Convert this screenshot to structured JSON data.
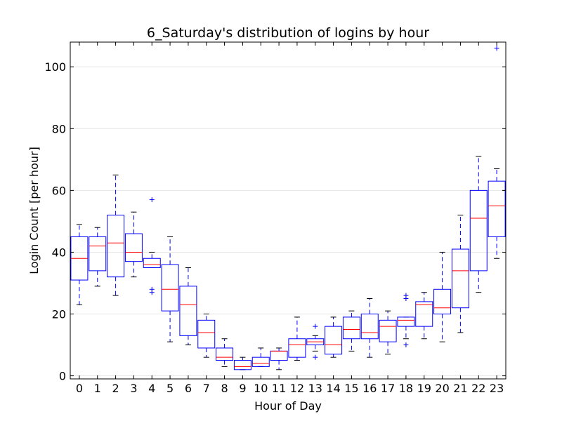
{
  "chart_data": {
    "type": "boxplot",
    "title": "6_Saturday's distribution of logins by hour",
    "xlabel": "Hour of Day",
    "ylabel": "Login Count [per hour]",
    "ylim": [
      -1,
      108
    ],
    "yticks": [
      0,
      20,
      40,
      60,
      80,
      100
    ],
    "grid": "horizontal",
    "colors": {
      "box": "#0000ff",
      "median": "#ff0000",
      "grid": "#e6e6e6"
    },
    "categories": [
      "0",
      "1",
      "2",
      "3",
      "4",
      "5",
      "6",
      "7",
      "8",
      "9",
      "10",
      "11",
      "12",
      "13",
      "14",
      "15",
      "16",
      "17",
      "18",
      "19",
      "20",
      "21",
      "22",
      "23"
    ],
    "boxes": [
      {
        "whislo": 23,
        "q1": 31,
        "med": 38,
        "q3": 45,
        "whishi": 49,
        "fliers": []
      },
      {
        "whislo": 29,
        "q1": 34,
        "med": 42,
        "q3": 45,
        "whishi": 48,
        "fliers": []
      },
      {
        "whislo": 26,
        "q1": 32,
        "med": 43,
        "q3": 52,
        "whishi": 65,
        "fliers": []
      },
      {
        "whislo": 32,
        "q1": 37,
        "med": 40,
        "q3": 46,
        "whishi": 53,
        "fliers": []
      },
      {
        "whislo": 35,
        "q1": 35,
        "med": 36,
        "q3": 38,
        "whishi": 40,
        "fliers": [
          57,
          28,
          27
        ]
      },
      {
        "whislo": 11,
        "q1": 21,
        "med": 28,
        "q3": 36,
        "whishi": 45,
        "fliers": []
      },
      {
        "whislo": 10,
        "q1": 13,
        "med": 23,
        "q3": 29,
        "whishi": 35,
        "fliers": []
      },
      {
        "whislo": 6,
        "q1": 9,
        "med": 14,
        "q3": 18,
        "whishi": 20,
        "fliers": []
      },
      {
        "whislo": 3,
        "q1": 5,
        "med": 6,
        "q3": 9,
        "whishi": 12,
        "fliers": []
      },
      {
        "whislo": 2,
        "q1": 2,
        "med": 3,
        "q3": 5,
        "whishi": 6,
        "fliers": []
      },
      {
        "whislo": 3,
        "q1": 3,
        "med": 4,
        "q3": 6,
        "whishi": 9,
        "fliers": []
      },
      {
        "whislo": 2,
        "q1": 5,
        "med": 8,
        "q3": 8,
        "whishi": 9,
        "fliers": []
      },
      {
        "whislo": 5,
        "q1": 6,
        "med": 10,
        "q3": 12,
        "whishi": 19,
        "fliers": []
      },
      {
        "whislo": 8,
        "q1": 10,
        "med": 11,
        "q3": 12,
        "whishi": 13,
        "fliers": [
          16,
          6
        ]
      },
      {
        "whislo": 6,
        "q1": 7,
        "med": 10,
        "q3": 16,
        "whishi": 19,
        "fliers": []
      },
      {
        "whislo": 8,
        "q1": 12,
        "med": 15,
        "q3": 19,
        "whishi": 21,
        "fliers": []
      },
      {
        "whislo": 6,
        "q1": 12,
        "med": 14,
        "q3": 20,
        "whishi": 25,
        "fliers": []
      },
      {
        "whislo": 7,
        "q1": 11,
        "med": 16,
        "q3": 18,
        "whishi": 21,
        "fliers": []
      },
      {
        "whislo": 12,
        "q1": 16,
        "med": 18,
        "q3": 19,
        "whishi": 19,
        "fliers": [
          26,
          25,
          10
        ]
      },
      {
        "whislo": 12,
        "q1": 16,
        "med": 23,
        "q3": 24,
        "whishi": 27,
        "fliers": []
      },
      {
        "whislo": 11,
        "q1": 20,
        "med": 22,
        "q3": 28,
        "whishi": 40,
        "fliers": []
      },
      {
        "whislo": 14,
        "q1": 22,
        "med": 34,
        "q3": 41,
        "whishi": 52,
        "fliers": []
      },
      {
        "whislo": 27,
        "q1": 34,
        "med": 51,
        "q3": 60,
        "whishi": 71,
        "fliers": []
      },
      {
        "whislo": 38,
        "q1": 45,
        "med": 55,
        "q3": 63,
        "whishi": 67,
        "fliers": [
          106
        ]
      }
    ]
  }
}
